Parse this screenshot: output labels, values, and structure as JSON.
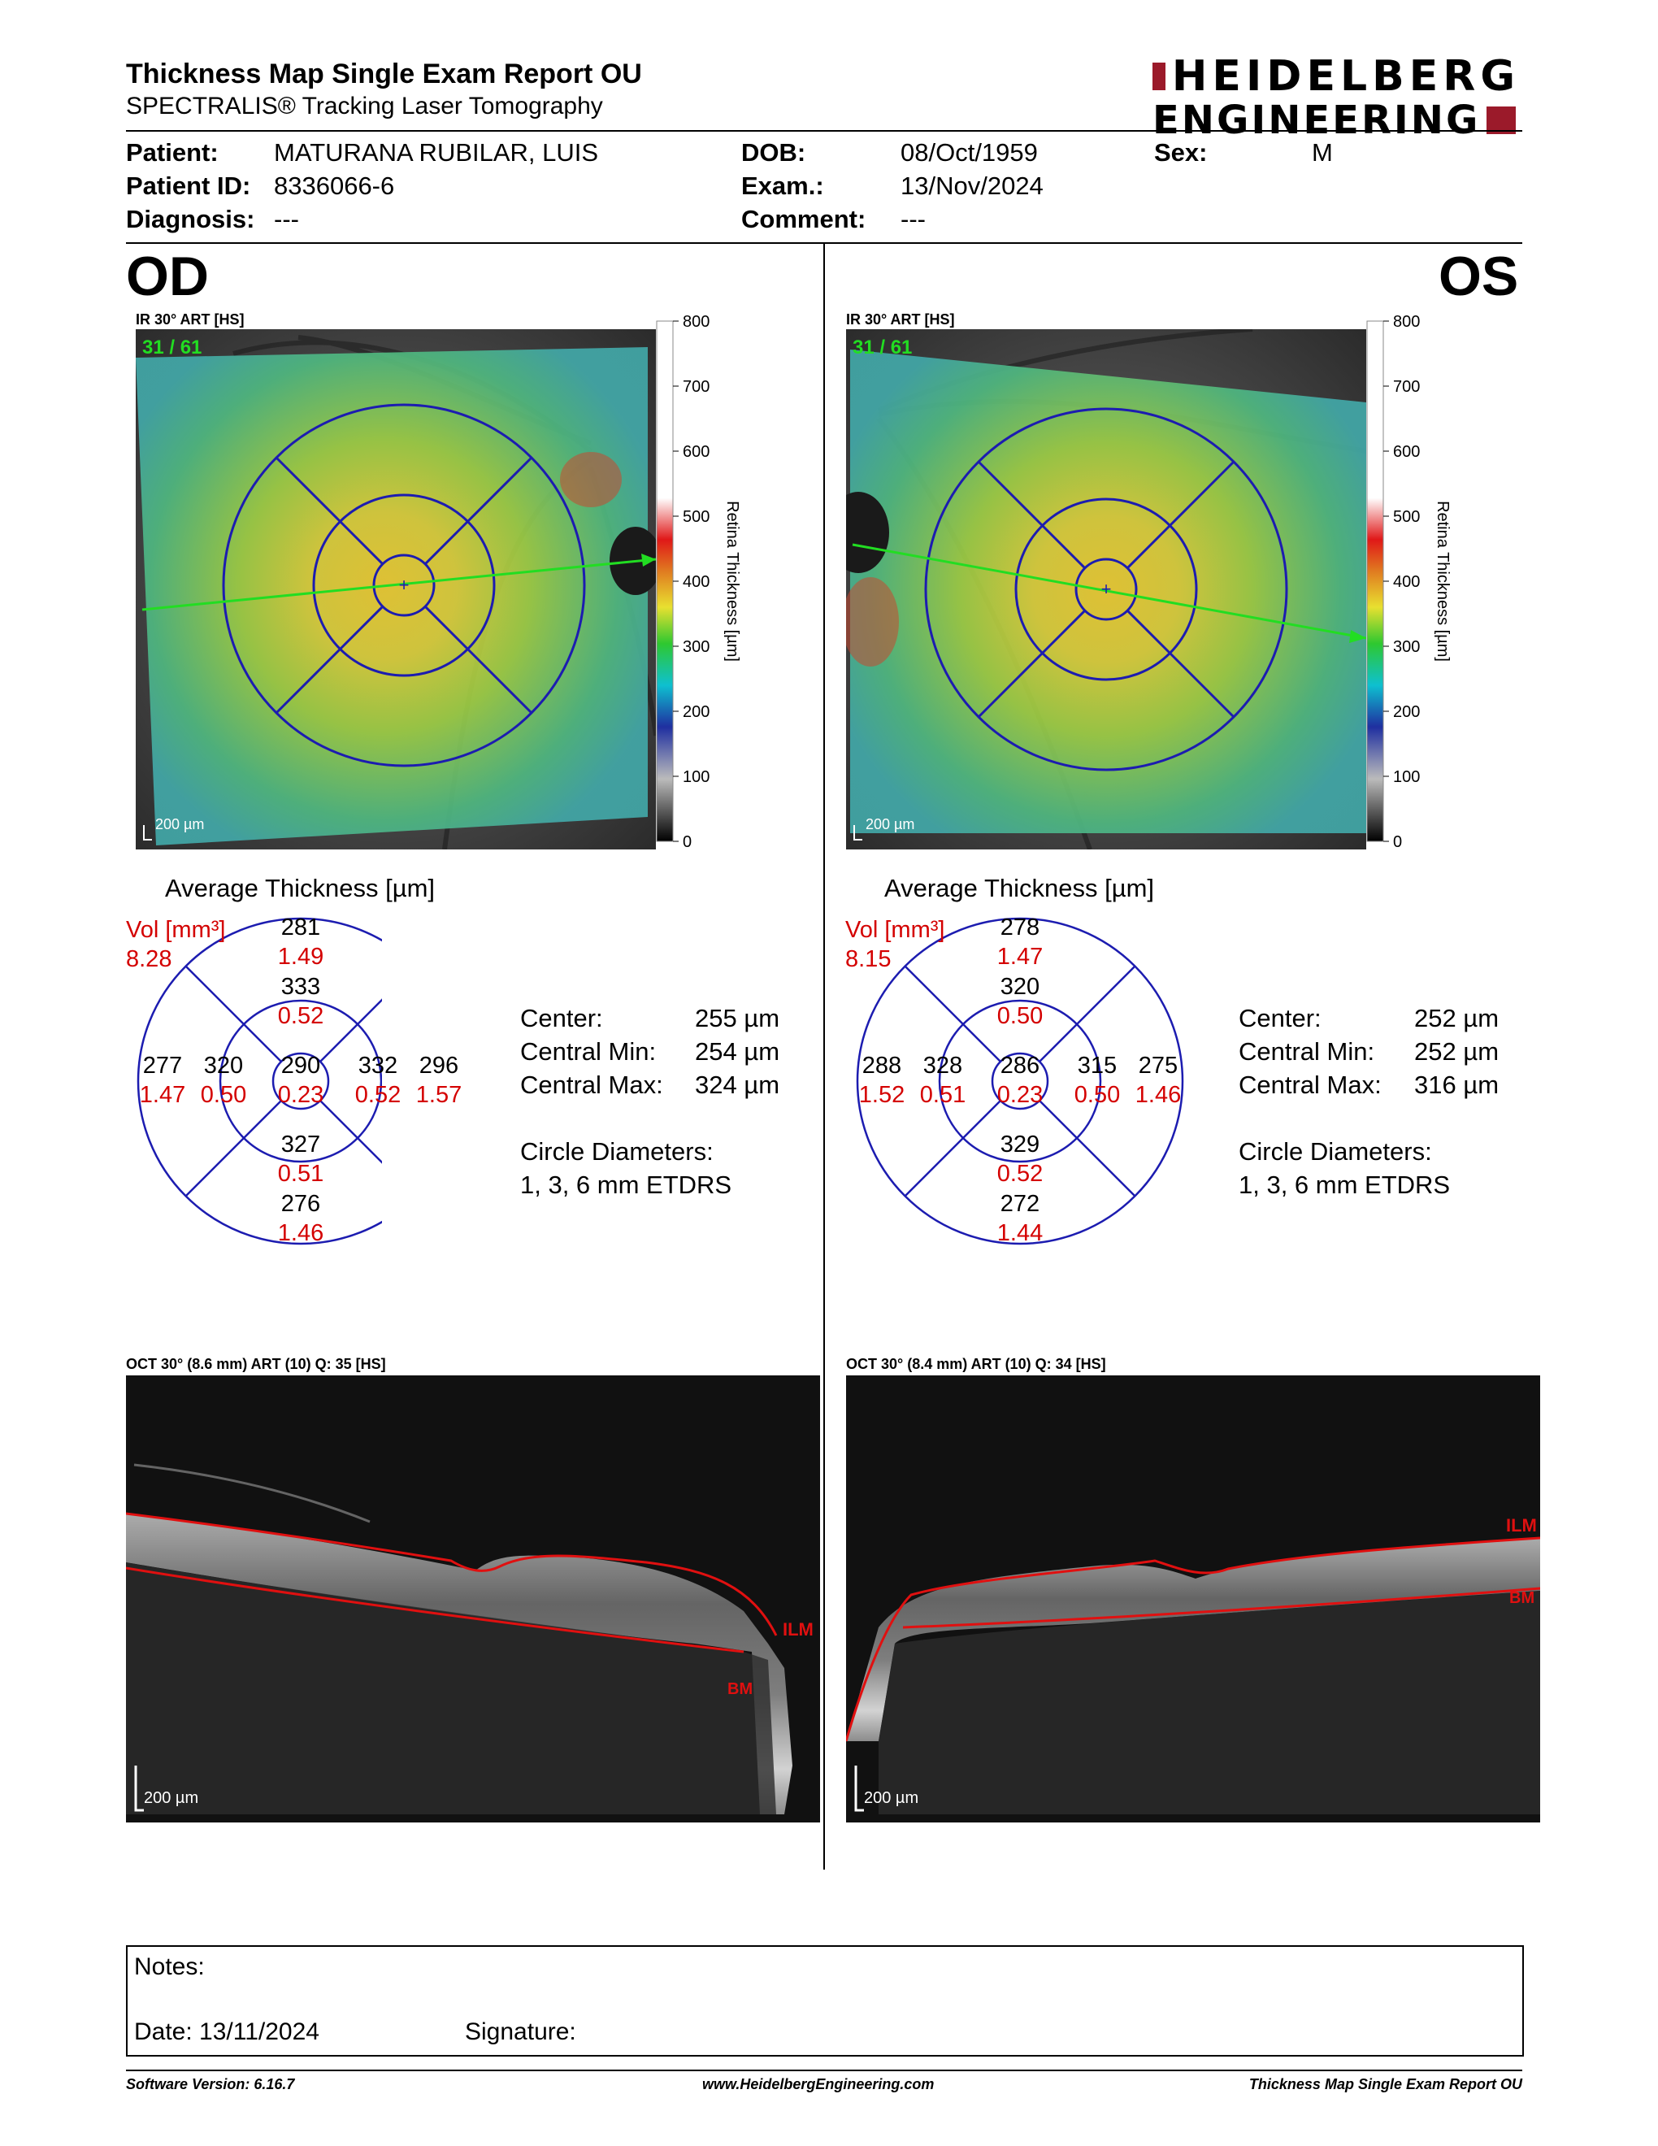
{
  "header": {
    "title": "Thickness Map Single Exam Report OU",
    "subtitle": "SPECTRALIS® Tracking Laser Tomography",
    "logo_line1": "HEIDELBERG",
    "logo_line2": "ENGINEERING",
    "brand_color": "#9b1a2a"
  },
  "patient": {
    "patient_label": "Patient:",
    "patient_value": "MATURANA RUBILAR, LUIS",
    "id_label": "Patient ID:",
    "id_value": "8336066-6",
    "diagnosis_label": "Diagnosis:",
    "diagnosis_value": "---",
    "dob_label": "DOB:",
    "dob_value": "08/Oct/1959",
    "exam_label": "Exam.:",
    "exam_value": "13/Nov/2024",
    "comment_label": "Comment:",
    "comment_value": "---",
    "sex_label": "Sex:",
    "sex_value": "M"
  },
  "od": {
    "eye": "OD",
    "ir_caption": "IR 30° ART [HS]",
    "frame": "31 / 61",
    "scale": "200 µm",
    "avg_title": "Average Thickness [µm]",
    "vol_label": "Vol [mm³]",
    "vol_value": "8.28",
    "sectors": {
      "center": [
        "290",
        "0.23"
      ],
      "inner_sup": [
        "333",
        "0.52"
      ],
      "inner_inf": [
        "327",
        "0.51"
      ],
      "inner_nasal_left": [
        "320",
        "0.50"
      ],
      "inner_right": [
        "332",
        "0.52"
      ],
      "outer_sup": [
        "281",
        "1.49"
      ],
      "outer_inf": [
        "276",
        "1.46"
      ],
      "outer_left": [
        "277",
        "1.47"
      ],
      "outer_right": [
        "296",
        "1.57"
      ]
    },
    "center_label": "Center:",
    "center_value": "255 µm",
    "cmin_label": "Central Min:",
    "cmin_value": "254 µm",
    "cmax_label": "Central Max:",
    "cmax_value": "324 µm",
    "circ_label": "Circle Diameters:",
    "circ_value": "1, 3, 6 mm ETDRS",
    "oct_caption": "OCT 30° (8.6 mm) ART (10) Q: 35 [HS]",
    "ilm": "ILM",
    "bm": "BM"
  },
  "os": {
    "eye": "OS",
    "ir_caption": "IR 30° ART [HS]",
    "frame": "31 / 61",
    "scale": "200 µm",
    "avg_title": "Average Thickness [µm]",
    "vol_label": "Vol [mm³]",
    "vol_value": "8.15",
    "sectors": {
      "center": [
        "286",
        "0.23"
      ],
      "inner_sup": [
        "320",
        "0.50"
      ],
      "inner_inf": [
        "329",
        "0.52"
      ],
      "inner_nasal_left": [
        "328",
        "0.51"
      ],
      "inner_right": [
        "315",
        "0.50"
      ],
      "outer_sup": [
        "278",
        "1.47"
      ],
      "outer_inf": [
        "272",
        "1.44"
      ],
      "outer_left": [
        "288",
        "1.52"
      ],
      "outer_right": [
        "275",
        "1.46"
      ]
    },
    "center_label": "Center:",
    "center_value": "252 µm",
    "cmin_label": "Central Min:",
    "cmin_value": "252 µm",
    "cmax_label": "Central Max:",
    "cmax_value": "316 µm",
    "circ_label": "Circle Diameters:",
    "circ_value": "1, 3, 6 mm ETDRS",
    "oct_caption": "OCT 30° (8.4 mm) ART (10) Q: 34 [HS]",
    "ilm": "ILM",
    "bm": "BM"
  },
  "colorbar": {
    "title": "Retina Thickness [µm]",
    "ticks": [
      "800",
      "700",
      "600",
      "500",
      "400",
      "300",
      "200",
      "100",
      "0"
    ]
  },
  "notes": {
    "notes_label": "Notes:",
    "date_label": "Date: 13/11/2024",
    "signature_label": "Signature:"
  },
  "footer": {
    "software": "Software Version: 6.16.7",
    "website": "www.HeidelbergEngineering.com",
    "report": "Thickness Map Single Exam Report OU"
  },
  "colors": {
    "grid_blue": "#1c1cb0",
    "volume_red": "#d40000",
    "scan_line": "#22dd22"
  }
}
